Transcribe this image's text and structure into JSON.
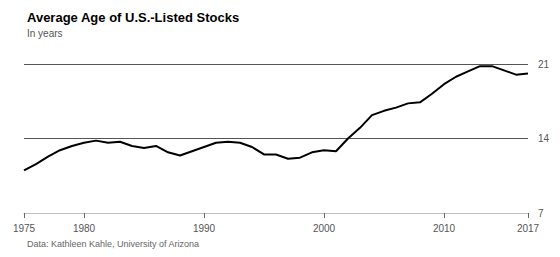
{
  "chart_data": {
    "type": "line",
    "title": "Average Age of U.S.-Listed Stocks",
    "subtitle": "In years",
    "source": "Data: Kathleen Kahle, University of Arizona",
    "x": [
      1975,
      1976,
      1977,
      1978,
      1979,
      1980,
      1981,
      1982,
      1983,
      1984,
      1985,
      1986,
      1987,
      1988,
      1989,
      1990,
      1991,
      1992,
      1993,
      1994,
      1995,
      1996,
      1997,
      1998,
      1999,
      2000,
      2001,
      2002,
      2003,
      2004,
      2005,
      2006,
      2007,
      2008,
      2009,
      2010,
      2011,
      2012,
      2013,
      2014,
      2015,
      2016,
      2017
    ],
    "values": [
      11.0,
      11.6,
      12.3,
      12.9,
      13.3,
      13.6,
      13.8,
      13.6,
      13.7,
      13.3,
      13.1,
      13.3,
      12.7,
      12.4,
      12.8,
      13.2,
      13.6,
      13.7,
      13.6,
      13.2,
      12.5,
      12.5,
      12.1,
      12.2,
      12.7,
      12.9,
      12.8,
      14.0,
      15.0,
      16.2,
      16.6,
      16.9,
      17.3,
      17.4,
      18.2,
      19.1,
      19.8,
      20.3,
      20.8,
      20.8,
      20.4,
      20.0,
      20.1
    ],
    "color": "#000000",
    "xlim": [
      1975,
      2017
    ],
    "xticks": [
      1975,
      1980,
      1990,
      2000,
      2010,
      2017
    ],
    "ylim": [
      7,
      21
    ],
    "yticks": [
      7,
      14,
      21
    ],
    "grid": true
  }
}
